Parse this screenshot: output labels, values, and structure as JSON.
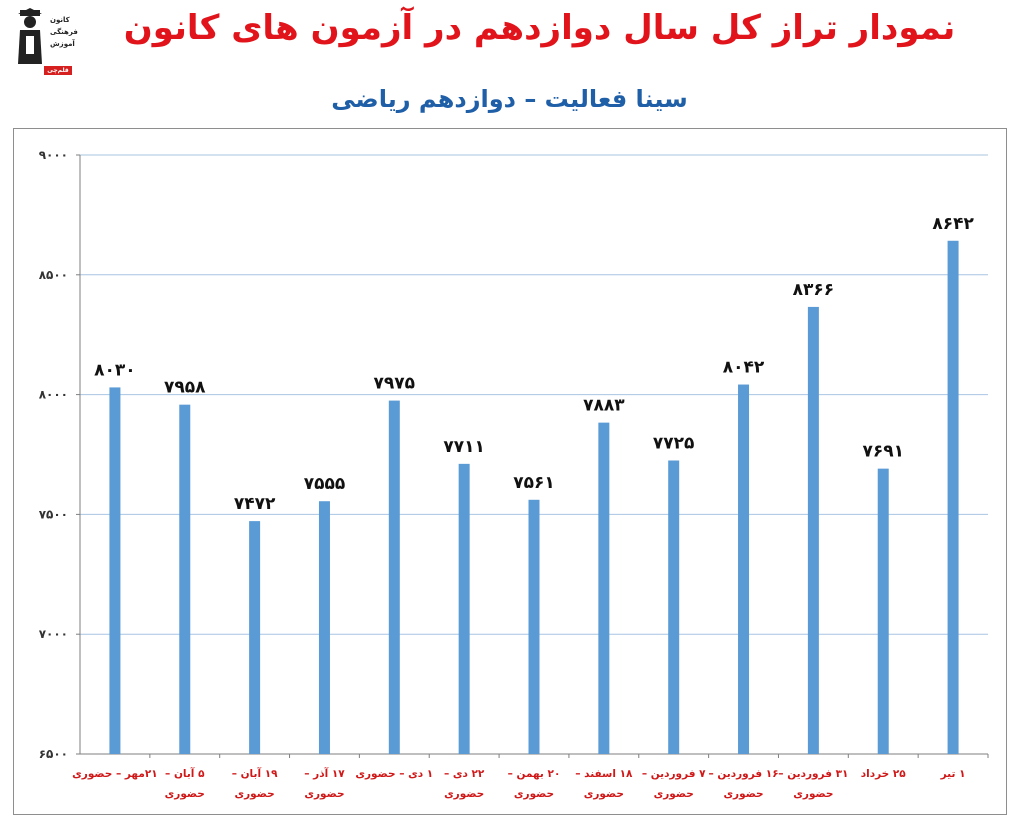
{
  "header": {
    "title": "نمودار تراز کل سال دوازدهم در آزمون های کانون",
    "subtitle": "سینا فعالیت – دوازدهم ریاضی"
  },
  "logo": {
    "lines": [
      "کانون",
      "فرهنگی",
      "آموزش"
    ],
    "badge": "قلم‌چی"
  },
  "colors": {
    "title": "#e1141b",
    "subtitle": "#1f5fa8",
    "bar": "#5b9bd5",
    "category_label": "#d01818",
    "grid": "#a9c4e2"
  },
  "chart_data": {
    "type": "bar",
    "categories": [
      [
        "۲۱مهر – حضوری"
      ],
      [
        "۵ آبان –",
        "حضوری"
      ],
      [
        "۱۹ آبان –",
        "حضوری"
      ],
      [
        "۱۷ آذر –",
        "حضوری"
      ],
      [
        "۱ دی – حضوری"
      ],
      [
        "۲۲ دی –",
        "حضوری"
      ],
      [
        "۲۰ بهمن –",
        "حضوری"
      ],
      [
        "۱۸ اسفند –",
        "حضوری"
      ],
      [
        "۷ فروردین –",
        "حضوری"
      ],
      [
        "۱۶ فروردین –",
        "حضوری"
      ],
      [
        "۳۱ فروردین –",
        "حضوری"
      ],
      [
        "۲۵ خرداد"
      ],
      [
        "۱ تیر"
      ]
    ],
    "values": [
      8030,
      7958,
      7472,
      7555,
      7975,
      7711,
      7561,
      7883,
      7725,
      8042,
      8366,
      7691,
      8642
    ],
    "value_labels": [
      "۸۰۳۰",
      "۷۹۵۸",
      "۷۴۷۲",
      "۷۵۵۵",
      "۷۹۷۵",
      "۷۷۱۱",
      "۷۵۶۱",
      "۷۸۸۳",
      "۷۷۲۵",
      "۸۰۴۲",
      "۸۳۶۶",
      "۷۶۹۱",
      "۸۶۴۲"
    ],
    "ylim": [
      6500,
      9000
    ],
    "yticks": [
      6500,
      7000,
      7500,
      8000,
      8500,
      9000
    ],
    "ytick_labels": [
      "۶۵۰۰",
      "۷۰۰۰",
      "۷۵۰۰",
      "۸۰۰۰",
      "۸۵۰۰",
      "۹۰۰۰"
    ],
    "grid": true,
    "legend": "none"
  }
}
